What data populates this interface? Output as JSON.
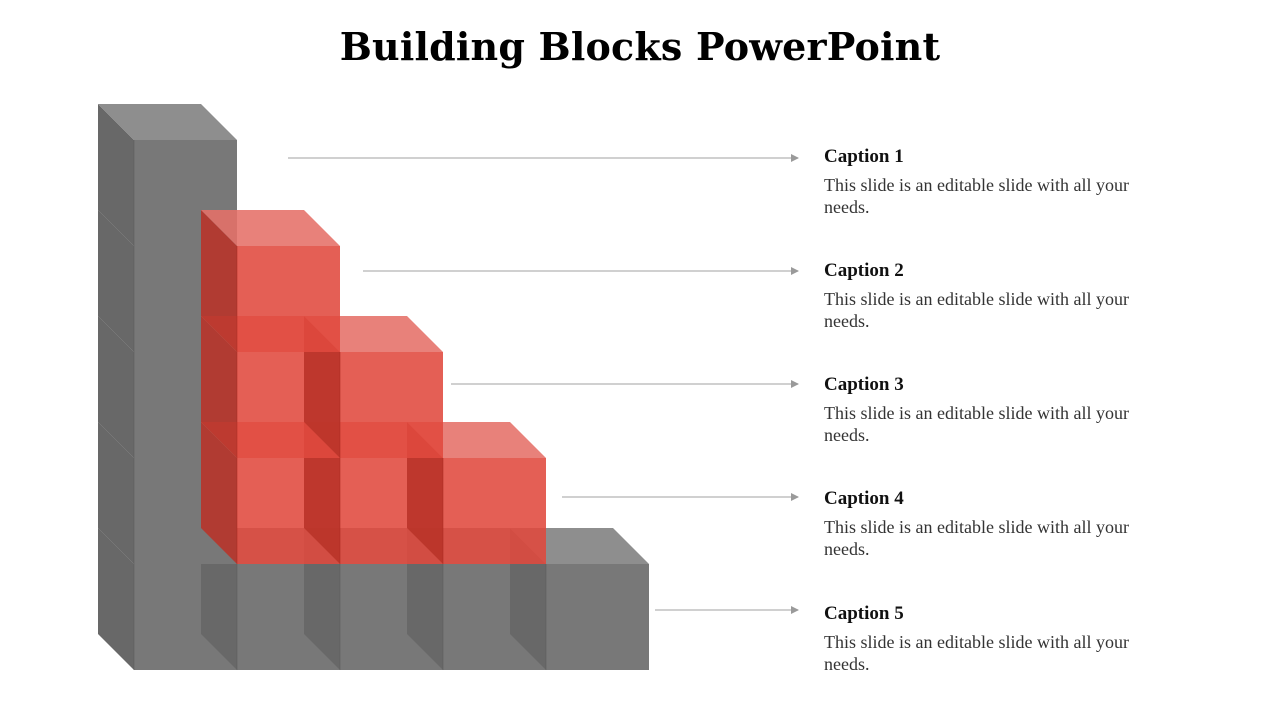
{
  "slide": {
    "title": "Building Blocks PowerPoint"
  },
  "colors": {
    "gray_block": "#787878",
    "gray_top": "#8e8e8e",
    "gray_side": "#686868",
    "red_block": "#e0493e",
    "red_top": "#e57068",
    "connector": "#b5b5b5"
  },
  "captions": [
    {
      "title": "Caption 1",
      "text": "This slide is an editable slide with all your needs."
    },
    {
      "title": "Caption 2",
      "text": "This slide is an editable slide with all your needs."
    },
    {
      "title": "Caption 3",
      "text": "This slide is an editable slide with all your needs."
    },
    {
      "title": "Caption 4",
      "text": "This slide is an editable slide with all your needs."
    },
    {
      "title": "Caption 5",
      "text": "This slide is an editable slide with all your needs."
    }
  ]
}
